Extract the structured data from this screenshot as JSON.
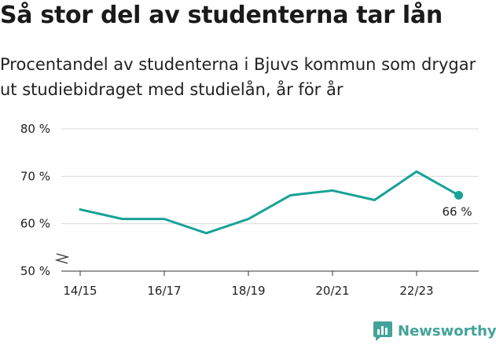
{
  "header": {
    "title": "Så stor del av studenterna tar lån",
    "subtitle_line1": "Procentandel av studenterna i Bjuvs kommun som drygar",
    "subtitle_line2": "ut studiebidraget med studielån, år för år"
  },
  "brand": {
    "name": "Newsworthy"
  },
  "colors": {
    "line": "#17a296",
    "grid": "#d9d9d9",
    "axis": "#333333"
  },
  "chart_data": {
    "type": "line",
    "x": [
      "14/15",
      "15/16",
      "16/17",
      "17/18",
      "18/19",
      "19/20",
      "20/21",
      "21/22",
      "22/23",
      "23/24"
    ],
    "series": [
      {
        "values": [
          63,
          61,
          61,
          58,
          61,
          66,
          67,
          65,
          71,
          66
        ]
      }
    ],
    "x_tick_labels": [
      "14/15",
      "16/17",
      "18/19",
      "20/21",
      "22/23"
    ],
    "y_ticks": [
      50,
      60,
      70,
      80
    ],
    "y_tick_labels": [
      "50 %",
      "60 %",
      "70 %",
      "80 %"
    ],
    "ylim": [
      50,
      80
    ],
    "axis_break": true,
    "grid": true,
    "last_value_label": "66 %"
  }
}
